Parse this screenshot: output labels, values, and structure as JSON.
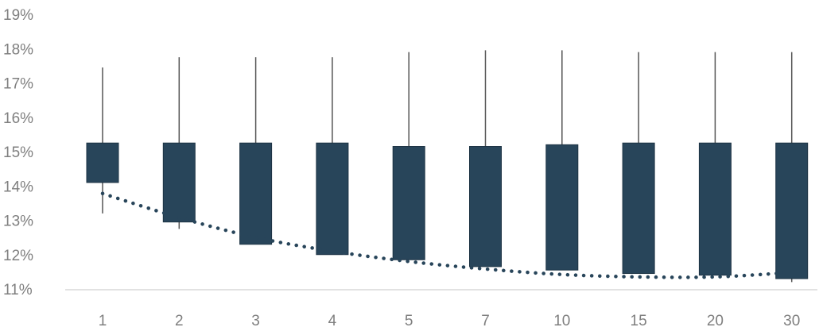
{
  "chart_data": {
    "type": "boxplot",
    "title": "",
    "xlabel": "",
    "ylabel": "",
    "ylim": [
      11,
      19
    ],
    "y_ticks": [
      "11%",
      "12%",
      "13%",
      "14%",
      "15%",
      "16%",
      "17%",
      "18%",
      "19%"
    ],
    "y_tick_values": [
      11,
      12,
      13,
      14,
      15,
      16,
      17,
      18,
      19
    ],
    "categories": [
      "1",
      "2",
      "3",
      "4",
      "5",
      "7",
      "10",
      "15",
      "20",
      "30"
    ],
    "boxes": [
      {
        "low": 13.2,
        "q1": 14.1,
        "q3": 15.25,
        "high": 17.45
      },
      {
        "low": 12.75,
        "q1": 12.95,
        "q3": 15.25,
        "high": 17.75
      },
      {
        "low": 12.3,
        "q1": 12.3,
        "q3": 15.25,
        "high": 17.75
      },
      {
        "low": 12.0,
        "q1": 12.0,
        "q3": 15.25,
        "high": 17.75
      },
      {
        "low": 11.85,
        "q1": 11.85,
        "q3": 15.15,
        "high": 17.9
      },
      {
        "low": 11.65,
        "q1": 11.65,
        "q3": 15.15,
        "high": 17.95
      },
      {
        "low": 11.55,
        "q1": 11.55,
        "q3": 15.2,
        "high": 17.95
      },
      {
        "low": 11.45,
        "q1": 11.45,
        "q3": 15.25,
        "high": 17.9
      },
      {
        "low": 11.4,
        "q1": 11.4,
        "q3": 15.25,
        "high": 17.9
      },
      {
        "low": 11.2,
        "q1": 11.3,
        "q3": 15.25,
        "high": 17.9
      }
    ],
    "trend_line": {
      "style": "dotted",
      "values": [
        13.78,
        13.08,
        12.5,
        12.1,
        11.8,
        11.58,
        11.42,
        11.35,
        11.35,
        11.48
      ]
    },
    "grid": false,
    "legend": "none",
    "colors": {
      "box": "#28455a",
      "whisker": "#555555",
      "trend": "#28455a",
      "axis": "#d9d9d9",
      "tick_text": "#7f7f7f"
    }
  }
}
